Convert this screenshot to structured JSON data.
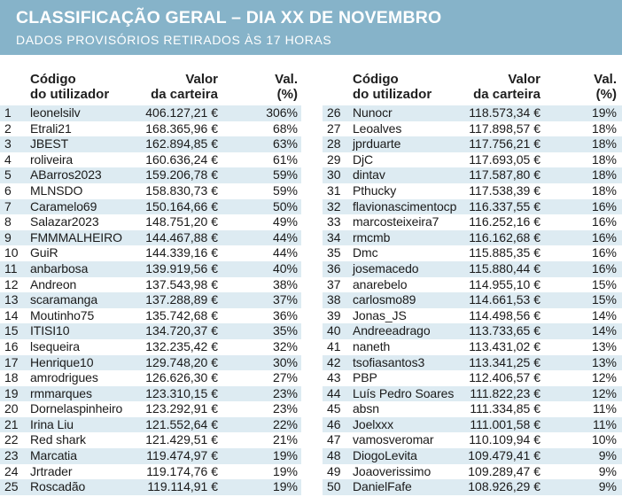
{
  "header": {
    "title": "CLASSIFICAÇÃO GERAL – DIA XX DE NOVEMBRO",
    "subtitle": "DADOS PROVISÓRIOS RETIRADOS ÀS 17 HORAS"
  },
  "columns": {
    "user_line1": "Código",
    "user_line2": "do utilizador",
    "value_line1": "Valor",
    "value_line2": "da carteira",
    "pct_line1": "Val.",
    "pct_line2": "(%)"
  },
  "table": {
    "left": [
      {
        "rank": "1",
        "user": "leonelsilv",
        "value": "406.127,21 €",
        "pct": "306%"
      },
      {
        "rank": "2",
        "user": "Etrali21",
        "value": "168.365,96 €",
        "pct": "68%"
      },
      {
        "rank": "3",
        "user": "JBEST",
        "value": "162.894,85 €",
        "pct": "63%"
      },
      {
        "rank": "4",
        "user": "roliveira",
        "value": "160.636,24 €",
        "pct": "61%"
      },
      {
        "rank": "5",
        "user": "ABarros2023",
        "value": "159.206,78 €",
        "pct": "59%"
      },
      {
        "rank": "6",
        "user": "MLNSDO",
        "value": "158.830,73 €",
        "pct": "59%"
      },
      {
        "rank": "7",
        "user": "Caramelo69",
        "value": "150.164,66 €",
        "pct": "50%"
      },
      {
        "rank": "8",
        "user": "Salazar2023",
        "value": "148.751,20 €",
        "pct": "49%"
      },
      {
        "rank": "9",
        "user": "FMMMALHEIRO",
        "value": "144.467,88 €",
        "pct": "44%"
      },
      {
        "rank": "10",
        "user": "GuiR",
        "value": "144.339,16 €",
        "pct": "44%"
      },
      {
        "rank": "11",
        "user": "anbarbosa",
        "value": "139.919,56 €",
        "pct": "40%"
      },
      {
        "rank": "12",
        "user": "Andreon",
        "value": "137.543,98 €",
        "pct": "38%"
      },
      {
        "rank": "13",
        "user": "scaramanga",
        "value": "137.288,89 €",
        "pct": "37%"
      },
      {
        "rank": "14",
        "user": "Moutinho75",
        "value": "135.742,68 €",
        "pct": "36%"
      },
      {
        "rank": "15",
        "user": "ITISI10",
        "value": "134.720,37 €",
        "pct": "35%"
      },
      {
        "rank": "16",
        "user": "lsequeira",
        "value": "132.235,42 €",
        "pct": "32%"
      },
      {
        "rank": "17",
        "user": "Henrique10",
        "value": "129.748,20 €",
        "pct": "30%"
      },
      {
        "rank": "18",
        "user": "amrodrigues",
        "value": "126.626,30 €",
        "pct": "27%"
      },
      {
        "rank": "19",
        "user": "rmmarques",
        "value": "123.310,15 €",
        "pct": "23%"
      },
      {
        "rank": "20",
        "user": "Dornelaspinheiro",
        "value": "123.292,91 €",
        "pct": "23%"
      },
      {
        "rank": "21",
        "user": "Irina Liu",
        "value": "121.552,64 €",
        "pct": "22%"
      },
      {
        "rank": "22",
        "user": "Red shark",
        "value": "121.429,51 €",
        "pct": "21%"
      },
      {
        "rank": "23",
        "user": "Marcatia",
        "value": "119.474,97 €",
        "pct": "19%"
      },
      {
        "rank": "24",
        "user": "Jrtrader",
        "value": "119.174,76 €",
        "pct": "19%"
      },
      {
        "rank": "25",
        "user": "Roscadão",
        "value": "119.114,91 €",
        "pct": "19%"
      }
    ],
    "right": [
      {
        "rank": "26",
        "user": "Nunocr",
        "value": "118.573,34 €",
        "pct": "19%"
      },
      {
        "rank": "27",
        "user": "Leoalves",
        "value": "117.898,57 €",
        "pct": "18%"
      },
      {
        "rank": "28",
        "user": "jprduarte",
        "value": "117.756,21 €",
        "pct": "18%"
      },
      {
        "rank": "29",
        "user": "DjC",
        "value": "117.693,05 €",
        "pct": "18%"
      },
      {
        "rank": "30",
        "user": "dintav",
        "value": "117.587,80 €",
        "pct": "18%"
      },
      {
        "rank": "31",
        "user": "Pthucky",
        "value": "117.538,39 €",
        "pct": "18%"
      },
      {
        "rank": "32",
        "user": "flavionascimentocp",
        "value": "116.337,55 €",
        "pct": "16%"
      },
      {
        "rank": "33",
        "user": "marcosteixeira7",
        "value": "116.252,16 €",
        "pct": "16%"
      },
      {
        "rank": "34",
        "user": "rmcmb",
        "value": "116.162,68 €",
        "pct": "16%"
      },
      {
        "rank": "35",
        "user": "Dmc",
        "value": "115.885,35 €",
        "pct": "16%"
      },
      {
        "rank": "36",
        "user": "josemacedo",
        "value": "115.880,44 €",
        "pct": "16%"
      },
      {
        "rank": "37",
        "user": "anarebelo",
        "value": "114.955,10 €",
        "pct": "15%"
      },
      {
        "rank": "38",
        "user": "carlosmo89",
        "value": "114.661,53 €",
        "pct": "15%"
      },
      {
        "rank": "39",
        "user": "Jonas_JS",
        "value": "114.498,56 €",
        "pct": "14%"
      },
      {
        "rank": "40",
        "user": "Andreeadrago",
        "value": "113.733,65 €",
        "pct": "14%"
      },
      {
        "rank": "41",
        "user": "naneth",
        "value": "113.431,02 €",
        "pct": "13%"
      },
      {
        "rank": "42",
        "user": "tsofiasantos3",
        "value": "113.341,25 €",
        "pct": "13%"
      },
      {
        "rank": "43",
        "user": "PBP",
        "value": "112.406,57 €",
        "pct": "12%"
      },
      {
        "rank": "44",
        "user": "Luís Pedro Soares",
        "value": "111.822,23 €",
        "pct": "12%"
      },
      {
        "rank": "45",
        "user": "absn",
        "value": "111.334,85 €",
        "pct": "11%"
      },
      {
        "rank": "46",
        "user": "Joelxxx",
        "value": "111.001,58 €",
        "pct": "11%"
      },
      {
        "rank": "47",
        "user": "vamosveromar",
        "value": "110.109,94 €",
        "pct": "10%"
      },
      {
        "rank": "48",
        "user": "DiogoLevita",
        "value": "109.479,41 €",
        "pct": "9%"
      },
      {
        "rank": "49",
        "user": "Joaoverissimo",
        "value": "109.289,47 €",
        "pct": "9%"
      },
      {
        "rank": "50",
        "user": "DanielFafe",
        "value": "108.926,29 €",
        "pct": "9%"
      }
    ]
  },
  "colors": {
    "header_bg": "#86b3c9",
    "row_stripe": "#ddebf2"
  }
}
